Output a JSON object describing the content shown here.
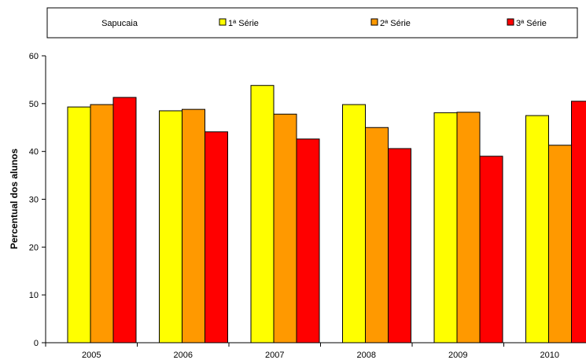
{
  "chart_data": {
    "type": "bar",
    "title": "",
    "xlabel": "",
    "ylabel": "Percentual dos alunos",
    "legend_label": "Sapucaia",
    "legend_position": "top",
    "categories": [
      "2005",
      "2006",
      "2007",
      "2008",
      "2009",
      "2010"
    ],
    "ylim": [
      0,
      60
    ],
    "yticks": [
      0,
      10,
      20,
      30,
      40,
      50,
      60
    ],
    "grid": false,
    "series": [
      {
        "name": "1ª Série",
        "color": "#FFFF00",
        "values": [
          49.3,
          48.5,
          53.8,
          49.8,
          48.1,
          47.5
        ]
      },
      {
        "name": "2ª Série",
        "color": "#FF9900",
        "values": [
          49.8,
          48.8,
          47.8,
          45.0,
          48.2,
          41.3
        ]
      },
      {
        "name": "3ª Série",
        "color": "#FF0000",
        "values": [
          51.3,
          44.1,
          42.6,
          40.6,
          39.0,
          50.5
        ]
      }
    ]
  }
}
